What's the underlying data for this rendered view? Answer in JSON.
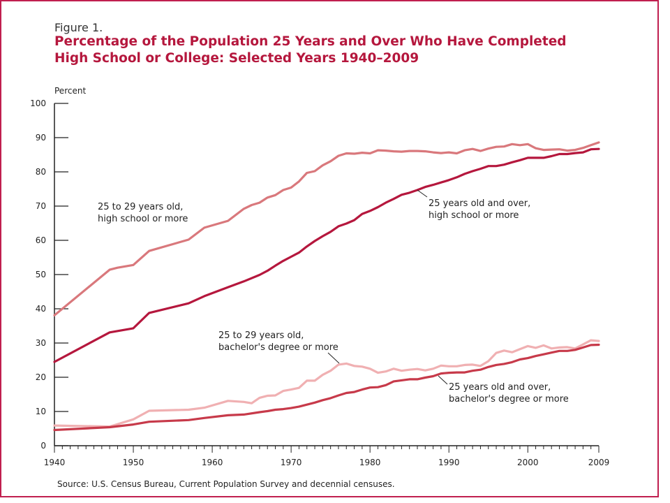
{
  "figure_label": "Figure 1.",
  "title_line1": "Percentage of the Population 25 Years and Over Who Have Completed",
  "title_line2": "High School or College: Selected Years 1940–2009",
  "source": "Source: U.S. Census Bureau, Current Population Survey and decennial censuses.",
  "colors": {
    "hs_25_29": "#d9787c",
    "hs_25_over": "#b5173d",
    "ba_25_29": "#f0b0b2",
    "ba_25_over": "#c73a4a",
    "frame": "#c01f4f",
    "title": "#b5173d"
  },
  "chart_data": {
    "type": "line",
    "title": "Percentage of the Population 25 Years and Over Who Have Completed High School or College: Selected Years 1940–2009",
    "ylabel": "Percent",
    "xlabel": "",
    "xlim": [
      1940,
      2009
    ],
    "ylim": [
      0,
      100
    ],
    "xticks": [
      1940,
      1950,
      1960,
      1970,
      1980,
      1990,
      2000,
      2009
    ],
    "yticks": [
      0,
      10,
      20,
      30,
      40,
      50,
      60,
      70,
      80,
      90,
      100
    ],
    "grid": false,
    "series": [
      {
        "id": "hs_25_29",
        "name": "25 to 29 years old, high school or more",
        "x": [
          1940,
          1947,
          1948,
          1950,
          1952,
          1957,
          1959,
          1962,
          1964,
          1965,
          1966,
          1967,
          1968,
          1969,
          1970,
          1971,
          1972,
          1973,
          1974,
          1975,
          1976,
          1977,
          1978,
          1979,
          1980,
          1981,
          1982,
          1983,
          1984,
          1985,
          1986,
          1987,
          1988,
          1989,
          1990,
          1991,
          1992,
          1993,
          1994,
          1995,
          1996,
          1997,
          1998,
          1999,
          2000,
          2001,
          2002,
          2003,
          2004,
          2005,
          2006,
          2007,
          2008,
          2009
        ],
        "y": [
          38.1,
          51.4,
          52.0,
          52.8,
          56.9,
          60.2,
          63.7,
          65.7,
          69.2,
          70.3,
          71.0,
          72.5,
          73.2,
          74.7,
          75.4,
          77.2,
          79.7,
          80.2,
          81.9,
          83.1,
          84.7,
          85.4,
          85.3,
          85.6,
          85.4,
          86.3,
          86.2,
          86.0,
          85.9,
          86.1,
          86.1,
          86.0,
          85.7,
          85.5,
          85.7,
          85.4,
          86.3,
          86.7,
          86.1,
          86.8,
          87.3,
          87.4,
          88.1,
          87.8,
          88.1,
          86.9,
          86.4,
          86.5,
          86.6,
          86.2,
          86.4,
          87.0,
          87.8,
          88.6
        ]
      },
      {
        "id": "hs_25_over",
        "name": "25 years old and over, high school or more",
        "x": [
          1940,
          1947,
          1950,
          1952,
          1957,
          1959,
          1962,
          1964,
          1966,
          1967,
          1968,
          1969,
          1970,
          1971,
          1972,
          1973,
          1974,
          1975,
          1976,
          1977,
          1978,
          1979,
          1980,
          1981,
          1982,
          1983,
          1984,
          1985,
          1986,
          1987,
          1988,
          1989,
          1990,
          1991,
          1992,
          1993,
          1994,
          1995,
          1996,
          1997,
          1998,
          1999,
          2000,
          2001,
          2002,
          2003,
          2004,
          2005,
          2006,
          2007,
          2008,
          2009
        ],
        "y": [
          24.5,
          33.1,
          34.3,
          38.8,
          41.6,
          43.7,
          46.3,
          48.0,
          49.9,
          51.1,
          52.6,
          54.0,
          55.2,
          56.4,
          58.2,
          59.8,
          61.2,
          62.5,
          64.1,
          64.9,
          65.9,
          67.7,
          68.6,
          69.7,
          71.0,
          72.1,
          73.3,
          73.9,
          74.7,
          75.6,
          76.2,
          76.9,
          77.6,
          78.4,
          79.4,
          80.2,
          80.9,
          81.7,
          81.7,
          82.1,
          82.8,
          83.4,
          84.1,
          84.1,
          84.1,
          84.6,
          85.2,
          85.2,
          85.5,
          85.7,
          86.6,
          86.7
        ]
      },
      {
        "id": "ba_25_29",
        "name": "25 to 29 years old, bachelor's degree or more",
        "x": [
          1940,
          1947,
          1950,
          1952,
          1957,
          1959,
          1962,
          1964,
          1965,
          1966,
          1967,
          1968,
          1969,
          1970,
          1971,
          1972,
          1973,
          1974,
          1975,
          1976,
          1977,
          1978,
          1979,
          1980,
          1981,
          1982,
          1983,
          1984,
          1985,
          1986,
          1987,
          1988,
          1989,
          1990,
          1991,
          1992,
          1993,
          1994,
          1995,
          1996,
          1997,
          1998,
          1999,
          2000,
          2001,
          2002,
          2003,
          2004,
          2005,
          2006,
          2007,
          2008,
          2009
        ],
        "y": [
          5.9,
          5.6,
          7.7,
          10.2,
          10.5,
          11.1,
          13.1,
          12.8,
          12.4,
          14.0,
          14.6,
          14.7,
          16.0,
          16.4,
          16.9,
          19.0,
          19.0,
          20.7,
          21.9,
          23.7,
          24.0,
          23.3,
          23.1,
          22.5,
          21.3,
          21.7,
          22.5,
          21.9,
          22.2,
          22.4,
          22.0,
          22.5,
          23.4,
          23.2,
          23.2,
          23.6,
          23.7,
          23.3,
          24.7,
          27.1,
          27.8,
          27.3,
          28.2,
          29.1,
          28.6,
          29.3,
          28.4,
          28.7,
          28.8,
          28.4,
          29.6,
          30.8,
          30.6
        ]
      },
      {
        "id": "ba_25_over",
        "name": "25 years old and over, bachelor's degree or more",
        "x": [
          1940,
          1947,
          1950,
          1952,
          1957,
          1959,
          1962,
          1964,
          1966,
          1967,
          1968,
          1969,
          1970,
          1971,
          1972,
          1973,
          1974,
          1975,
          1976,
          1977,
          1978,
          1979,
          1980,
          1981,
          1982,
          1983,
          1984,
          1985,
          1986,
          1987,
          1988,
          1989,
          1990,
          1991,
          1992,
          1993,
          1994,
          1995,
          1996,
          1997,
          1998,
          1999,
          2000,
          2001,
          2002,
          2003,
          2004,
          2005,
          2006,
          2007,
          2008,
          2009
        ],
        "y": [
          4.6,
          5.4,
          6.2,
          7.0,
          7.5,
          8.1,
          8.9,
          9.1,
          9.8,
          10.1,
          10.5,
          10.7,
          11.0,
          11.4,
          12.0,
          12.6,
          13.3,
          13.9,
          14.7,
          15.4,
          15.7,
          16.4,
          17.0,
          17.1,
          17.7,
          18.8,
          19.1,
          19.4,
          19.4,
          19.9,
          20.3,
          21.1,
          21.3,
          21.4,
          21.4,
          21.9,
          22.2,
          23.0,
          23.6,
          23.9,
          24.4,
          25.2,
          25.6,
          26.2,
          26.7,
          27.2,
          27.7,
          27.7,
          28.0,
          28.7,
          29.4,
          29.5
        ]
      }
    ],
    "annotations": [
      {
        "series": "hs_25_29",
        "lines": [
          "25 to 29 years old,",
          "high school or more"
        ]
      },
      {
        "series": "hs_25_over",
        "lines": [
          "25 years old and over,",
          "high school or more"
        ]
      },
      {
        "series": "ba_25_29",
        "lines": [
          "25 to 29 years old,",
          "bachelor's degree or more"
        ]
      },
      {
        "series": "ba_25_over",
        "lines": [
          "25 years old and over,",
          "bachelor's degree or more"
        ]
      }
    ]
  }
}
